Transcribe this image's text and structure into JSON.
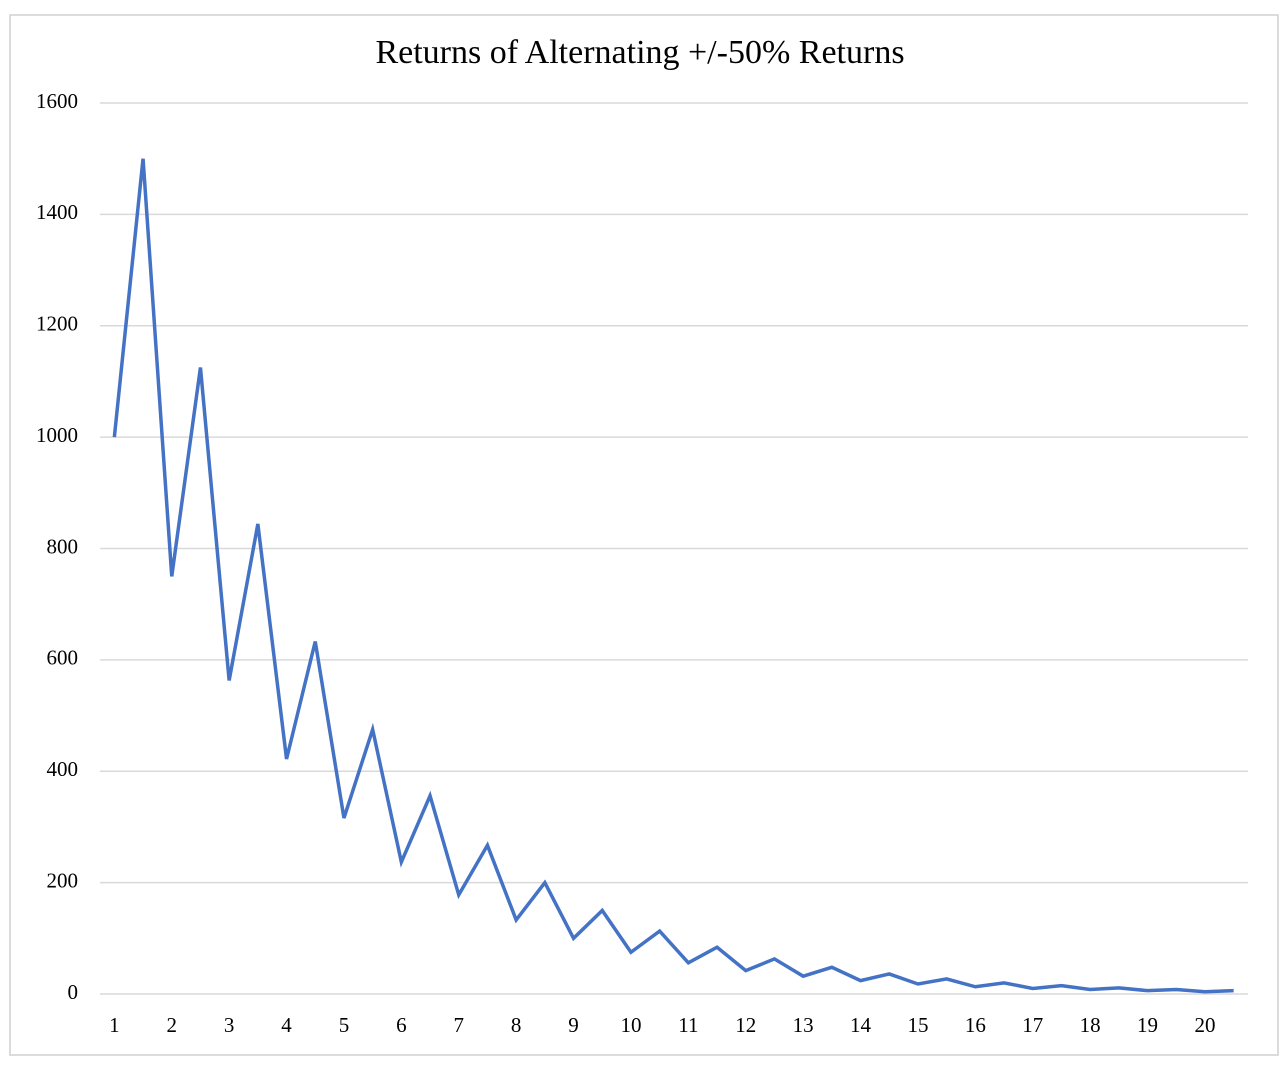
{
  "chart_data": {
    "type": "line",
    "title": "Returns of Alternating +/-50% Returns",
    "categories": [
      "1",
      null,
      "2",
      null,
      "3",
      null,
      "4",
      null,
      "5",
      null,
      "6",
      null,
      "7",
      null,
      "8",
      null,
      "9",
      null,
      "10",
      null,
      "11",
      null,
      "12",
      null,
      "13",
      null,
      "14",
      null,
      "15",
      null,
      "16",
      null,
      "17",
      null,
      "18",
      null,
      "19",
      null,
      "20",
      null
    ],
    "values": [
      1000,
      1500,
      750,
      1125,
      563,
      844,
      422,
      633,
      316,
      475,
      237,
      356,
      178,
      267,
      133,
      200,
      100,
      150,
      75,
      113,
      56,
      84,
      42,
      63,
      32,
      48,
      24,
      36,
      18,
      27,
      13,
      20,
      10,
      15,
      8,
      11,
      6,
      8,
      4,
      6
    ],
    "color": "#4472c4",
    "ylim": [
      0,
      1600
    ],
    "yticks": [
      0,
      200,
      400,
      600,
      800,
      1000,
      1200,
      1400,
      1600
    ],
    "grid": true
  }
}
